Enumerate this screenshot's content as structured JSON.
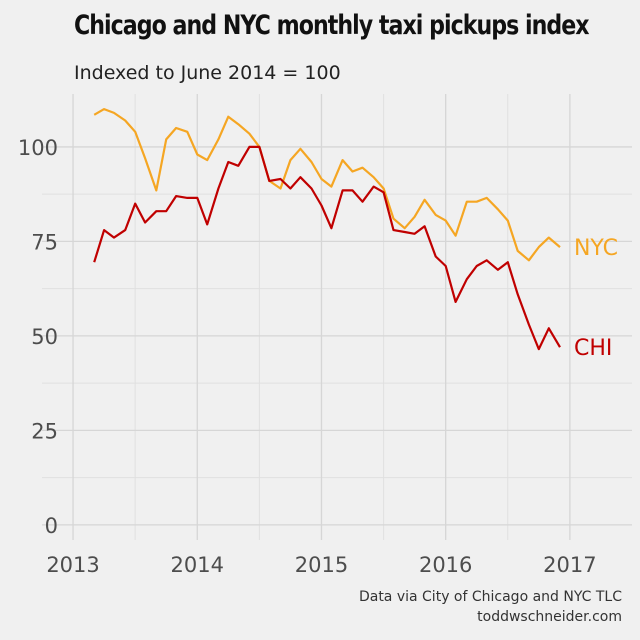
{
  "chart_data": {
    "type": "line",
    "title": "Chicago and NYC monthly taxi pickups index",
    "subtitle": "Indexed to June 2014 = 100",
    "xlabel": "",
    "ylabel": "",
    "xlim": [
      2012.75,
      2017.5
    ],
    "ylim": [
      -4,
      114
    ],
    "x_ticks": [
      2013,
      2014,
      2015,
      2016,
      2017
    ],
    "x_tick_labels": [
      "2013",
      "2014",
      "2015",
      "2016",
      "2017"
    ],
    "y_ticks": [
      0,
      25,
      50,
      75,
      100
    ],
    "y_tick_labels": [
      "0",
      "25",
      "50",
      "75",
      "100"
    ],
    "grid": true,
    "legend": "direct labels at line ends",
    "x": [
      2013.17,
      2013.25,
      2013.33,
      2013.42,
      2013.5,
      2013.58,
      2013.67,
      2013.75,
      2013.83,
      2013.92,
      2014.0,
      2014.08,
      2014.17,
      2014.25,
      2014.33,
      2014.42,
      2014.5,
      2014.58,
      2014.67,
      2014.75,
      2014.83,
      2014.92,
      2015.0,
      2015.08,
      2015.17,
      2015.25,
      2015.33,
      2015.42,
      2015.5,
      2015.58,
      2015.67,
      2015.75,
      2015.83,
      2015.92,
      2016.0,
      2016.08,
      2016.17,
      2016.25,
      2016.33,
      2016.42,
      2016.5,
      2016.58,
      2016.67,
      2016.75,
      2016.83,
      2016.92
    ],
    "series": [
      {
        "name": "NYC",
        "color": "#f5a623",
        "values": [
          108.5,
          110,
          109,
          107,
          104,
          97,
          88.5,
          102,
          105,
          104,
          98,
          96.5,
          102,
          108,
          106,
          103.5,
          100,
          91,
          89,
          96.5,
          99.5,
          96,
          91.5,
          89.5,
          96.5,
          93.5,
          94.5,
          92,
          89,
          81,
          78.5,
          81.5,
          86,
          82,
          80.5,
          76.5,
          85.5,
          85.5,
          86.5,
          83.5,
          80.5,
          72.5,
          70,
          73.5,
          76,
          73.5
        ]
      },
      {
        "name": "CHI",
        "color": "#c00000",
        "values": [
          69.5,
          78,
          76,
          78,
          85,
          80,
          83,
          83,
          87,
          86.5,
          86.5,
          79.5,
          89,
          96,
          95,
          100,
          100,
          91,
          91.5,
          89,
          92,
          89,
          84.5,
          78.5,
          88.5,
          88.5,
          85.5,
          89.5,
          88,
          78,
          77.5,
          77,
          79,
          71,
          68.5,
          59,
          65,
          68.5,
          70,
          67.5,
          69.5,
          61,
          53,
          46.5,
          52,
          47
        ]
      }
    ]
  },
  "caption": {
    "line1": "Data via City of Chicago and NYC TLC",
    "line2": "toddwschneider.com"
  }
}
